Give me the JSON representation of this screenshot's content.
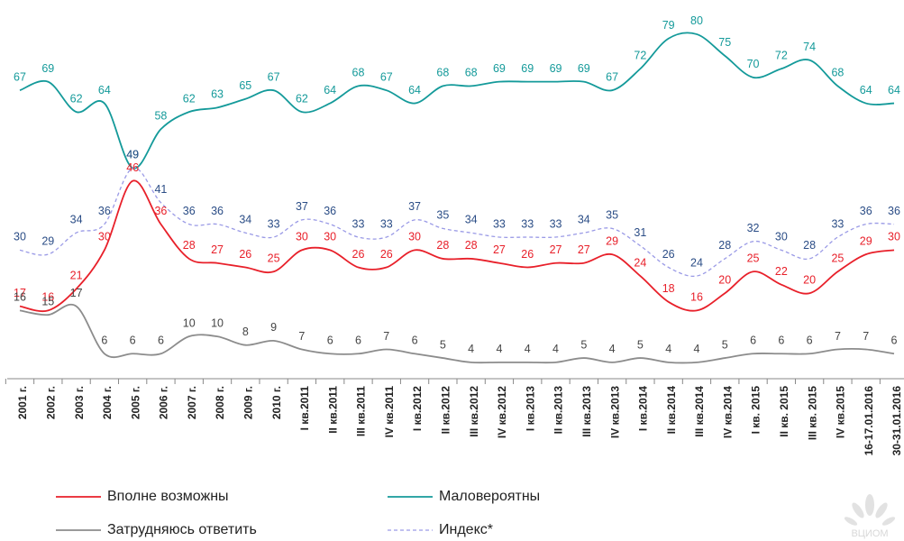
{
  "chart_data": {
    "type": "line",
    "categories": [
      "2001 г.",
      "2002 г.",
      "2003 г.",
      "2004 г.",
      "2005 г.",
      "2006 г.",
      "2007 г.",
      "2008 г.",
      "2009 г.",
      "2010 г.",
      "I кв.2011",
      "II кв.2011",
      "III кв.2011",
      "IV кв.2011",
      "I кв.2012",
      "II кв.2012",
      "III кв.2012",
      "IV кв.2012",
      "I кв.2013",
      "II кв.2013",
      "III кв.2013",
      "IV кв.2013",
      "I кв.2014",
      "II кв.2014",
      "III кв.2014",
      "IV кв.2014",
      "I кв. 2015",
      "II кв. 2015",
      "III кв. 2015",
      "IV кв.2015",
      "16-17.01.2016",
      "30-31.01.2016"
    ],
    "series": [
      {
        "name": "Маловероятны",
        "color": "#149a9a",
        "label_color": "#149a9a",
        "dashed": false,
        "values": [
          67,
          69,
          62,
          64,
          49,
          58,
          62,
          63,
          65,
          67,
          62,
          64,
          68,
          67,
          64,
          68,
          68,
          69,
          69,
          69,
          69,
          67,
          72,
          79,
          80,
          75,
          70,
          72,
          74,
          68,
          64,
          64
        ]
      },
      {
        "name": "Индекс*",
        "color": "#9a9ae6",
        "label_color": "#2b4d86",
        "dashed": true,
        "values": [
          30,
          29,
          34,
          36,
          49,
          41,
          36,
          36,
          34,
          33,
          37,
          36,
          33,
          33,
          37,
          35,
          34,
          33,
          33,
          33,
          34,
          35,
          31,
          26,
          24,
          28,
          32,
          30,
          28,
          33,
          36,
          36
        ]
      },
      {
        "name": "Вполне возможны",
        "color": "#e8202a",
        "label_color": "#e8202a",
        "dashed": false,
        "values": [
          17,
          16,
          21,
          30,
          46,
          36,
          28,
          27,
          26,
          25,
          30,
          30,
          26,
          26,
          30,
          28,
          28,
          27,
          26,
          27,
          27,
          29,
          24,
          18,
          16,
          20,
          25,
          22,
          20,
          25,
          29,
          30
        ]
      },
      {
        "name": "Затрудняюсь ответить",
        "color": "#8c8c8c",
        "label_color": "#444444",
        "dashed": false,
        "values": [
          16,
          15,
          17,
          6,
          6,
          6,
          10,
          10,
          8,
          9,
          7,
          6,
          6,
          7,
          6,
          5,
          4,
          4,
          4,
          4,
          5,
          4,
          5,
          4,
          4,
          5,
          6,
          6,
          6,
          7,
          7,
          6
        ]
      }
    ],
    "ylim": [
      0,
      85
    ],
    "legend_order": [
      2,
      0,
      3,
      1
    ],
    "watermark": "ВЦИОМ"
  }
}
